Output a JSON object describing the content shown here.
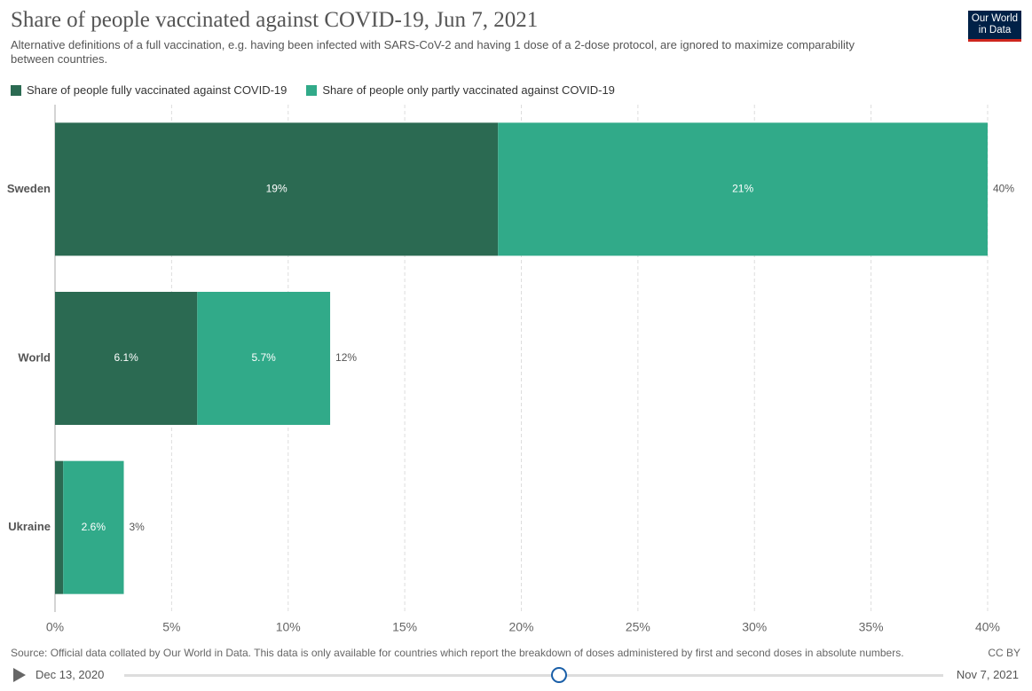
{
  "chart_data": {
    "type": "stacked_bar",
    "orientation": "horizontal",
    "title": "Share of people vaccinated against COVID-19, Jun 7, 2021",
    "subtitle": "Alternative definitions of a full vaccination, e.g. having been infected with SARS-CoV-2 and having 1 dose of a 2-dose protocol, are ignored to maximize comparability between countries.",
    "categories": [
      "Sweden",
      "World",
      "Ukraine"
    ],
    "series": [
      {
        "name": "Share of people fully vaccinated against COVID-19",
        "color": "#2b6a52",
        "values": [
          19,
          6.1,
          0.35
        ],
        "value_labels": [
          "19%",
          "6.1%",
          null
        ]
      },
      {
        "name": "Share of people only partly vaccinated against COVID-19",
        "color": "#31aa89",
        "values": [
          21,
          5.7,
          2.6
        ],
        "value_labels": [
          "21%",
          "5.7%",
          "2.6%"
        ]
      }
    ],
    "totals": [
      40,
      11.8,
      2.95
    ],
    "total_labels": [
      "40%",
      "12%",
      "3%"
    ],
    "xlim": [
      0,
      40
    ],
    "xticks": [
      {
        "value": 0,
        "label": "0%"
      },
      {
        "value": 5,
        "label": "5%"
      },
      {
        "value": 10,
        "label": "10%"
      },
      {
        "value": 15,
        "label": "15%"
      },
      {
        "value": 20,
        "label": "20%"
      },
      {
        "value": 25,
        "label": "25%"
      },
      {
        "value": 30,
        "label": "30%"
      },
      {
        "value": 35,
        "label": "35%"
      },
      {
        "value": 40,
        "label": "40%"
      }
    ],
    "grid": true
  },
  "logo": [
    "Our World",
    "in Data"
  ],
  "source": "Source: Official data collated by Our World in Data. This data is only available for countries which report the breakdown of doses administered by first and second doses in absolute numbers.",
  "license": "CC BY",
  "timeline": {
    "start": "Dec 13, 2020",
    "end": "Nov 7, 2021"
  }
}
